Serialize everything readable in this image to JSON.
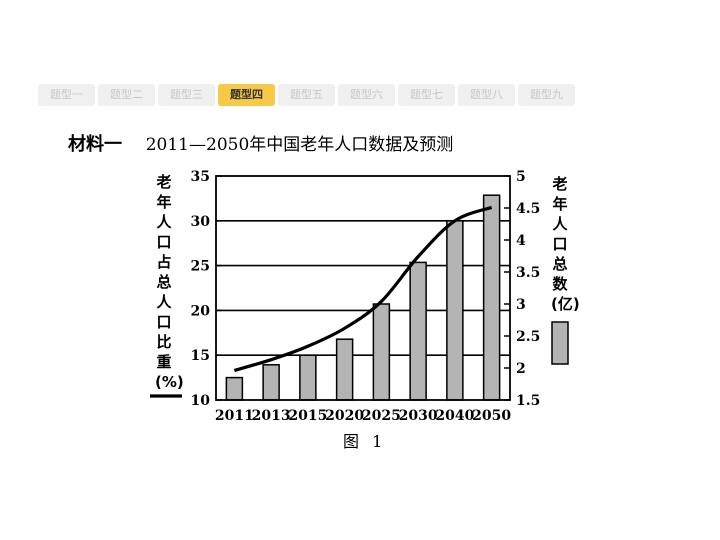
{
  "tabs": [
    {
      "label": "题型一",
      "active": false
    },
    {
      "label": "题型二",
      "active": false
    },
    {
      "label": "题型三",
      "active": false
    },
    {
      "label": "题型四",
      "active": true
    },
    {
      "label": "题型五",
      "active": false
    },
    {
      "label": "题型六",
      "active": false
    },
    {
      "label": "题型七",
      "active": false
    },
    {
      "label": "题型八",
      "active": false
    },
    {
      "label": "题型九",
      "active": false
    }
  ],
  "material": {
    "label": "材料一",
    "title": "2011—2050年中国老年人口数据及预测"
  },
  "caption": "图 1",
  "chart_data": {
    "type": "bar+line",
    "categories": [
      "2011",
      "2013",
      "2015",
      "2020",
      "2025",
      "2030",
      "2040",
      "2050"
    ],
    "bar_series": {
      "axis": "right",
      "ylabel": "老年人口总数(亿)",
      "values": [
        1.85,
        2.05,
        2.2,
        2.45,
        3.0,
        3.65,
        4.3,
        4.7
      ]
    },
    "line_series": {
      "axis": "left",
      "ylabel": "老年人口占总人口比重(%)",
      "values": [
        13.3,
        14.5,
        16.0,
        18.0,
        21.0,
        26.0,
        30.0,
        31.5
      ]
    },
    "left_axis": {
      "ylim": [
        10,
        35
      ],
      "ticks": [
        "10",
        "15",
        "20",
        "25",
        "30",
        "35"
      ]
    },
    "right_axis": {
      "ylim": [
        1.5,
        5
      ],
      "ticks": [
        "1.5",
        "2",
        "2.5",
        "3",
        "3.5",
        "4",
        "4.5",
        "5"
      ]
    },
    "grid": true,
    "colors": {
      "bar": "#b4b4b4",
      "line": "#000000"
    }
  }
}
